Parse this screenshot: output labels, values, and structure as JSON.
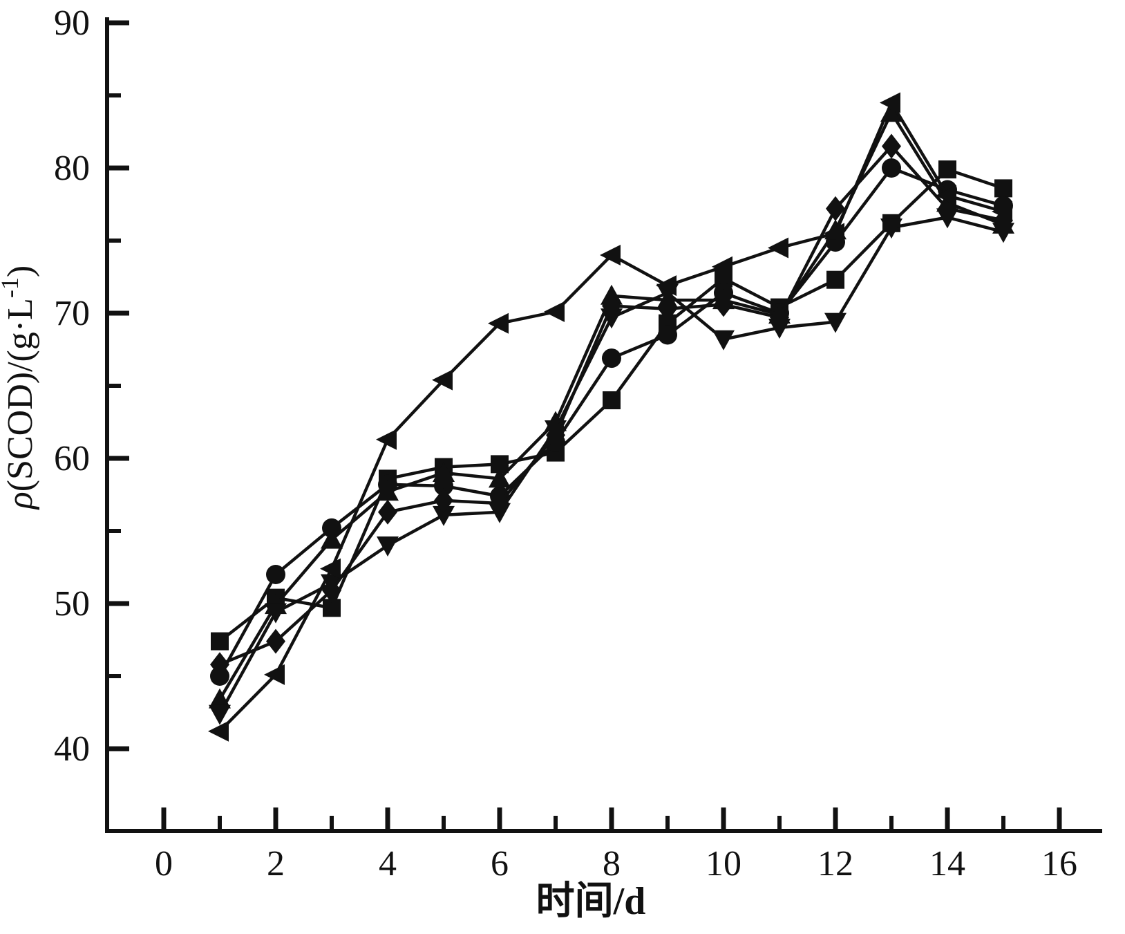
{
  "figure": {
    "background": "#ffffff",
    "ink_color": "#111111"
  },
  "chart_data": {
    "type": "line",
    "title": "",
    "xlabel": "时间/d",
    "ylabel": "ρ(SCOD)/(g·L-1)",
    "ylabel_parts": {
      "rho": "ρ",
      "main": "(SCOD)/(g·L",
      "sup": "-1",
      "end": ")"
    },
    "xlim": [
      -1,
      16.8
    ],
    "ylim": [
      34.3,
      90.4
    ],
    "grid": false,
    "legend": "none",
    "x_major_ticks": [
      0,
      2,
      4,
      6,
      8,
      10,
      12,
      14,
      16
    ],
    "x_major_tick_labels": [
      "0",
      "2",
      "4",
      "6",
      "8",
      "10",
      "12",
      "14",
      "16"
    ],
    "x_minor_ticks": [
      1,
      3,
      5,
      7,
      9,
      11,
      13,
      15
    ],
    "y_major_ticks": [
      40,
      50,
      60,
      70,
      80,
      90
    ],
    "y_major_tick_labels": [
      "40",
      "50",
      "60",
      "70",
      "80",
      "90"
    ],
    "y_minor_ticks": [
      45,
      55,
      65,
      75,
      85
    ],
    "x": [
      1,
      2,
      3,
      4,
      5,
      6,
      7,
      8,
      9,
      10,
      11,
      12,
      13,
      14,
      15
    ],
    "series": [
      {
        "name": "square",
        "marker": "square",
        "values": [
          47.4,
          50.4,
          49.7,
          58.6,
          59.4,
          59.6,
          60.4,
          64.0,
          69.3,
          72.4,
          70.4,
          72.3,
          76.2,
          79.9,
          78.6
        ]
      },
      {
        "name": "circle",
        "marker": "circle",
        "values": [
          45.0,
          52.0,
          55.2,
          58.2,
          58.1,
          57.4,
          61.1,
          66.9,
          68.5,
          71.4,
          70.0,
          74.9,
          80.0,
          78.5,
          77.4
        ]
      },
      {
        "name": "triangle-up",
        "marker": "triangle-up",
        "values": [
          43.4,
          49.9,
          54.4,
          57.7,
          59.0,
          58.6,
          62.5,
          71.2,
          70.9,
          70.9,
          69.9,
          75.7,
          83.8,
          77.6,
          76.1
        ]
      },
      {
        "name": "triangle-down",
        "marker": "triangle-down",
        "values": [
          42.4,
          49.4,
          51.4,
          54.0,
          56.1,
          56.3,
          62.0,
          69.7,
          71.4,
          68.2,
          69.0,
          69.4,
          75.9,
          76.6,
          75.6
        ]
      },
      {
        "name": "diamond",
        "marker": "diamond",
        "values": [
          45.8,
          47.4,
          50.9,
          56.3,
          57.1,
          56.9,
          61.6,
          70.5,
          70.3,
          70.6,
          69.7,
          77.2,
          81.5,
          77.2,
          76.4
        ]
      },
      {
        "name": "triangle-left",
        "marker": "triangle-left",
        "values": [
          41.2,
          45.1,
          52.4,
          61.3,
          65.4,
          69.3,
          70.1,
          74.0,
          71.9,
          73.2,
          74.5,
          75.5,
          84.5,
          78.1,
          77.0
        ]
      }
    ]
  }
}
